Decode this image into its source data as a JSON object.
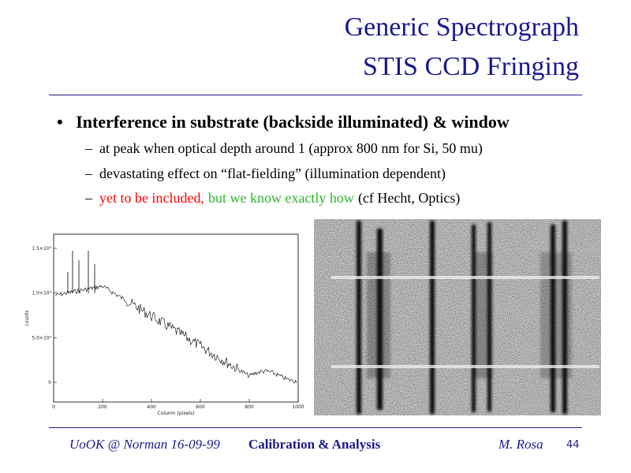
{
  "title": {
    "lines": [
      "Generic Spectrograph",
      "STIS CCD Fringing"
    ]
  },
  "bullets": [
    {
      "text": "Interference in substrate (backside illuminated) & window",
      "subitems": [
        {
          "segments": [
            {
              "text": "at peak when optical depth around 1 (approx 800 nm for Si, 50 mu)",
              "color": "#000000"
            }
          ]
        },
        {
          "segments": [
            {
              "text": "devastating effect on “flat-fielding” (illumination dependent)",
              "color": "#000000"
            }
          ]
        },
        {
          "segments": [
            {
              "text": "yet to be included,",
              "color": "#ff0000"
            },
            {
              "text": "but we know exactly how",
              "color": "#2db52d"
            },
            {
              "text": "(cf Hecht, Optics)",
              "color": "#000000"
            }
          ]
        }
      ]
    }
  ],
  "figure": {
    "yticks": [
      "1.5×10⁴",
      "1.0×10⁴",
      "5.0×10³",
      "0"
    ],
    "xticks": [
      "0",
      "200",
      "400",
      "600",
      "800",
      "1000"
    ],
    "ylabel": "counts",
    "xlabel": "Column (pixels)"
  },
  "footer": {
    "venue": "UoOK @ Norman  16-09-99",
    "section": "Calibration & Analysis",
    "author": "M. Rosa",
    "page": "44"
  }
}
